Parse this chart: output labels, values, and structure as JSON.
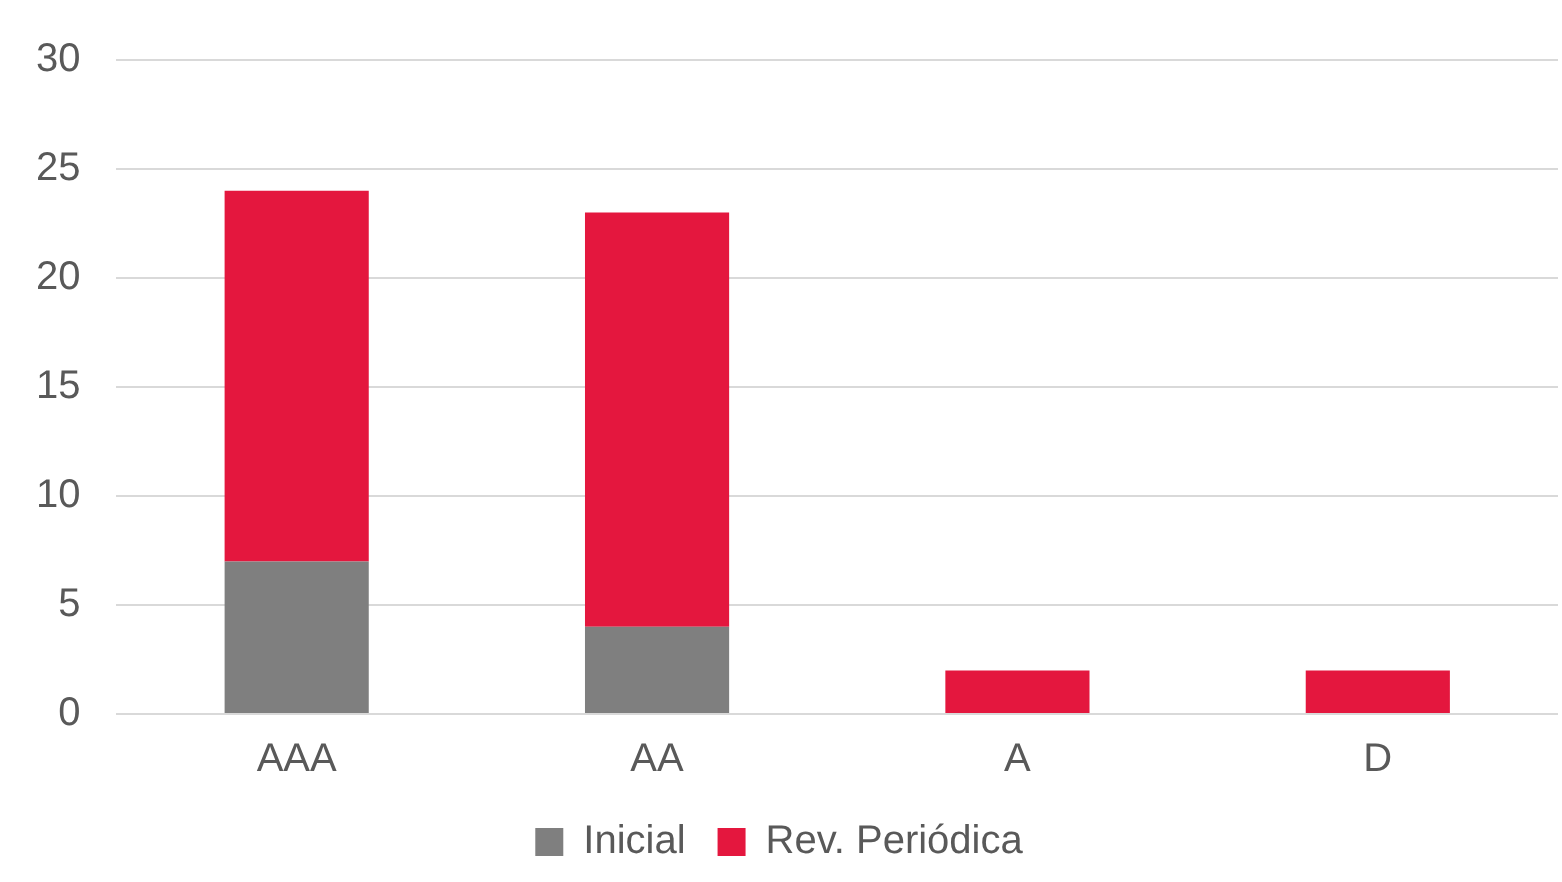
{
  "chart_data": {
    "type": "bar",
    "stacked": true,
    "categories": [
      "AAA",
      "AA",
      "A",
      "D"
    ],
    "series": [
      {
        "name": "Inicial",
        "color": "#7f7f7f",
        "values": [
          7,
          4,
          0,
          0
        ]
      },
      {
        "name": "Rev. Periódica",
        "color": "#e4173e",
        "values": [
          17,
          19,
          2,
          2
        ]
      }
    ],
    "ylim": [
      0,
      30
    ],
    "yticks": [
      0,
      5,
      10,
      15,
      20,
      25,
      30
    ],
    "grid": "y",
    "legend": "bottom"
  }
}
